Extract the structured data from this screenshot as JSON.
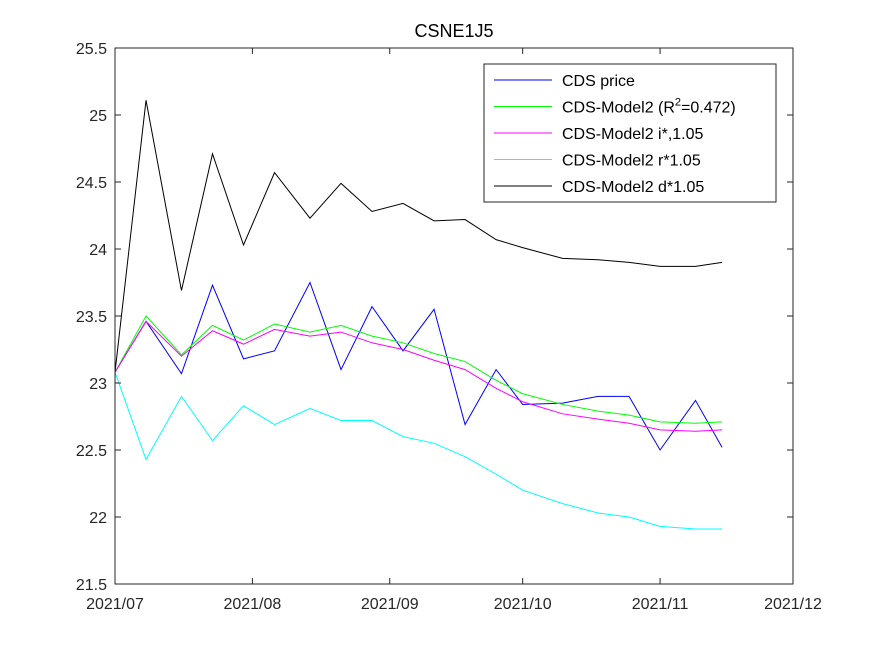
{
  "chart_data": {
    "type": "line",
    "title": "CSNE1J5",
    "xlabel": "",
    "ylabel": "",
    "x_ticks": [
      "2021/07",
      "2021/08",
      "2021/09",
      "2021/10",
      "2021/11",
      "2021/12"
    ],
    "x_tick_dates": [
      "2021-07-01",
      "2021-08-01",
      "2021-09-01",
      "2021-10-01",
      "2021-11-01",
      "2021-12-01"
    ],
    "xlim": [
      "2021-07-01",
      "2021-12-01"
    ],
    "ylim": [
      21.5,
      25.5
    ],
    "y_ticks": [
      21.5,
      22,
      22.5,
      23,
      23.5,
      24,
      24.5,
      25,
      25.5
    ],
    "grid": false,
    "legend_position": "top-right",
    "x": [
      "2021-07-01",
      "2021-07-08",
      "2021-07-16",
      "2021-07-23",
      "2021-07-30",
      "2021-08-06",
      "2021-08-14",
      "2021-08-21",
      "2021-08-28",
      "2021-09-04",
      "2021-09-11",
      "2021-09-18",
      "2021-09-25",
      "2021-10-01",
      "2021-10-10",
      "2021-10-18",
      "2021-10-25",
      "2021-11-01",
      "2021-11-09",
      "2021-11-15"
    ],
    "series": [
      {
        "name": "CDS price",
        "color": "#0000ff",
        "values": [
          23.08,
          23.46,
          23.07,
          23.73,
          23.18,
          23.24,
          23.75,
          23.1,
          23.57,
          23.24,
          23.55,
          22.69,
          23.1,
          22.84,
          22.85,
          22.9,
          22.9,
          22.5,
          22.87,
          22.52
        ]
      },
      {
        "name": "CDS-Model2 (R²=0.472)",
        "color": "#00ff00",
        "values": [
          23.08,
          23.5,
          23.21,
          23.43,
          23.32,
          23.44,
          23.38,
          23.43,
          23.35,
          23.3,
          23.22,
          23.16,
          23.02,
          22.92,
          22.84,
          22.79,
          22.76,
          22.71,
          22.7,
          22.71
        ]
      },
      {
        "name": "CDS-Model2 i*,1.05",
        "color": "#ff00ff",
        "values": [
          23.08,
          23.46,
          23.2,
          23.39,
          23.29,
          23.4,
          23.35,
          23.38,
          23.3,
          23.25,
          23.17,
          23.1,
          22.96,
          22.86,
          22.77,
          22.73,
          22.7,
          22.65,
          22.64,
          22.65
        ]
      },
      {
        "name": "CDS-Model2 r*1.05",
        "color": "#00ffff",
        "values": [
          23.08,
          22.43,
          22.9,
          22.57,
          22.83,
          22.69,
          22.81,
          22.72,
          22.72,
          22.6,
          22.55,
          22.45,
          22.32,
          22.2,
          22.1,
          22.03,
          22.0,
          21.93,
          21.91,
          21.91
        ]
      },
      {
        "name": "CDS-Model2 d*1.05",
        "color": "#000000",
        "values": [
          23.08,
          25.11,
          23.69,
          24.71,
          24.03,
          24.57,
          24.23,
          24.49,
          24.28,
          24.34,
          24.21,
          24.22,
          24.07,
          24.01,
          23.93,
          23.92,
          23.9,
          23.87,
          23.87,
          23.9
        ]
      }
    ]
  }
}
